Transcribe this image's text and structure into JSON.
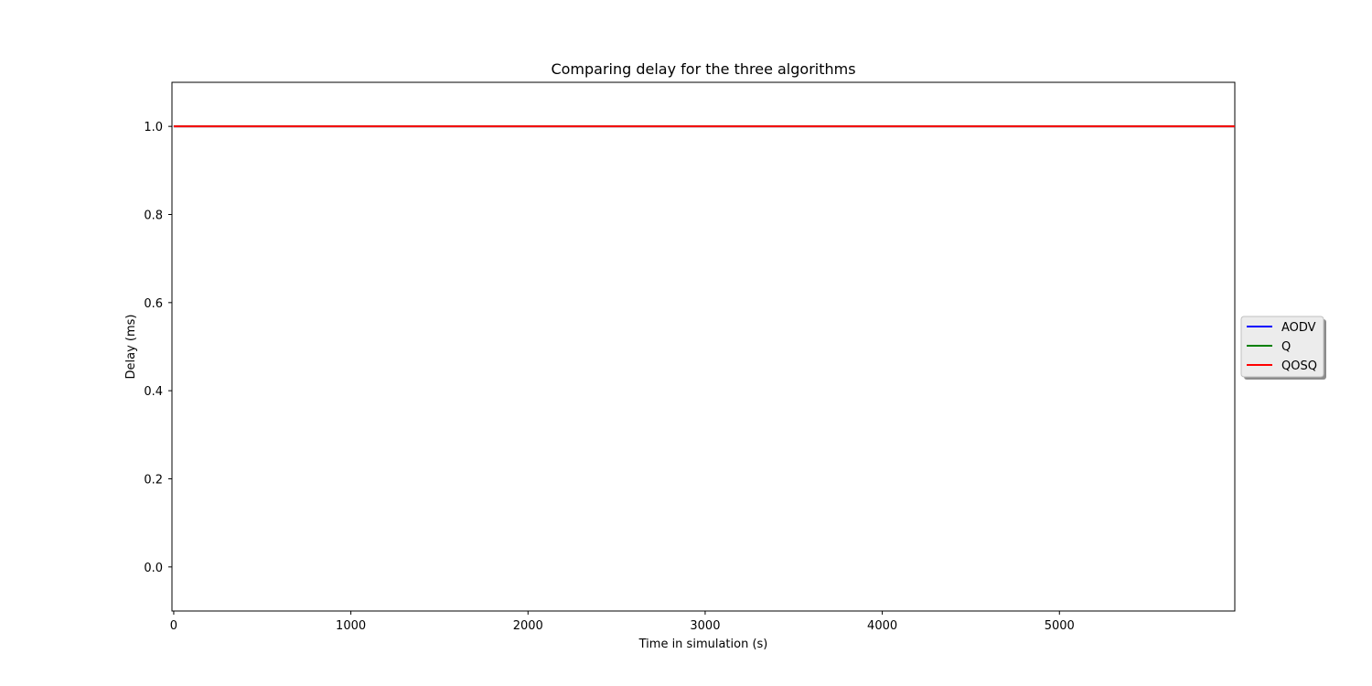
{
  "chart_data": {
    "type": "line",
    "title": "Comparing delay for the three algorithms",
    "xlabel": "Time in simulation (s)",
    "ylabel": "Delay (ms)",
    "xlim": [
      -10,
      5990
    ],
    "ylim": [
      -0.1,
      1.1
    ],
    "xticks": [
      0,
      1000,
      2000,
      3000,
      4000,
      5000
    ],
    "xtick_labels": [
      "0",
      "1000",
      "2000",
      "3000",
      "4000",
      "5000"
    ],
    "yticks": [
      0.0,
      0.2,
      0.4,
      0.6,
      0.8,
      1.0
    ],
    "ytick_labels": [
      "0.0",
      "0.2",
      "0.4",
      "0.6",
      "0.8",
      "1.0"
    ],
    "grid": false,
    "legend_position": "outside-right",
    "series": [
      {
        "name": "AODV",
        "color": "#0000ff",
        "x": [
          0,
          5990
        ],
        "y": [
          1.0,
          1.0
        ]
      },
      {
        "name": "Q",
        "color": "#008000",
        "x": [
          0,
          5990
        ],
        "y": [
          1.0,
          1.0
        ]
      },
      {
        "name": "QOSQ",
        "color": "#ff0000",
        "x": [
          0,
          5990
        ],
        "y": [
          1.0,
          1.0
        ]
      }
    ]
  }
}
